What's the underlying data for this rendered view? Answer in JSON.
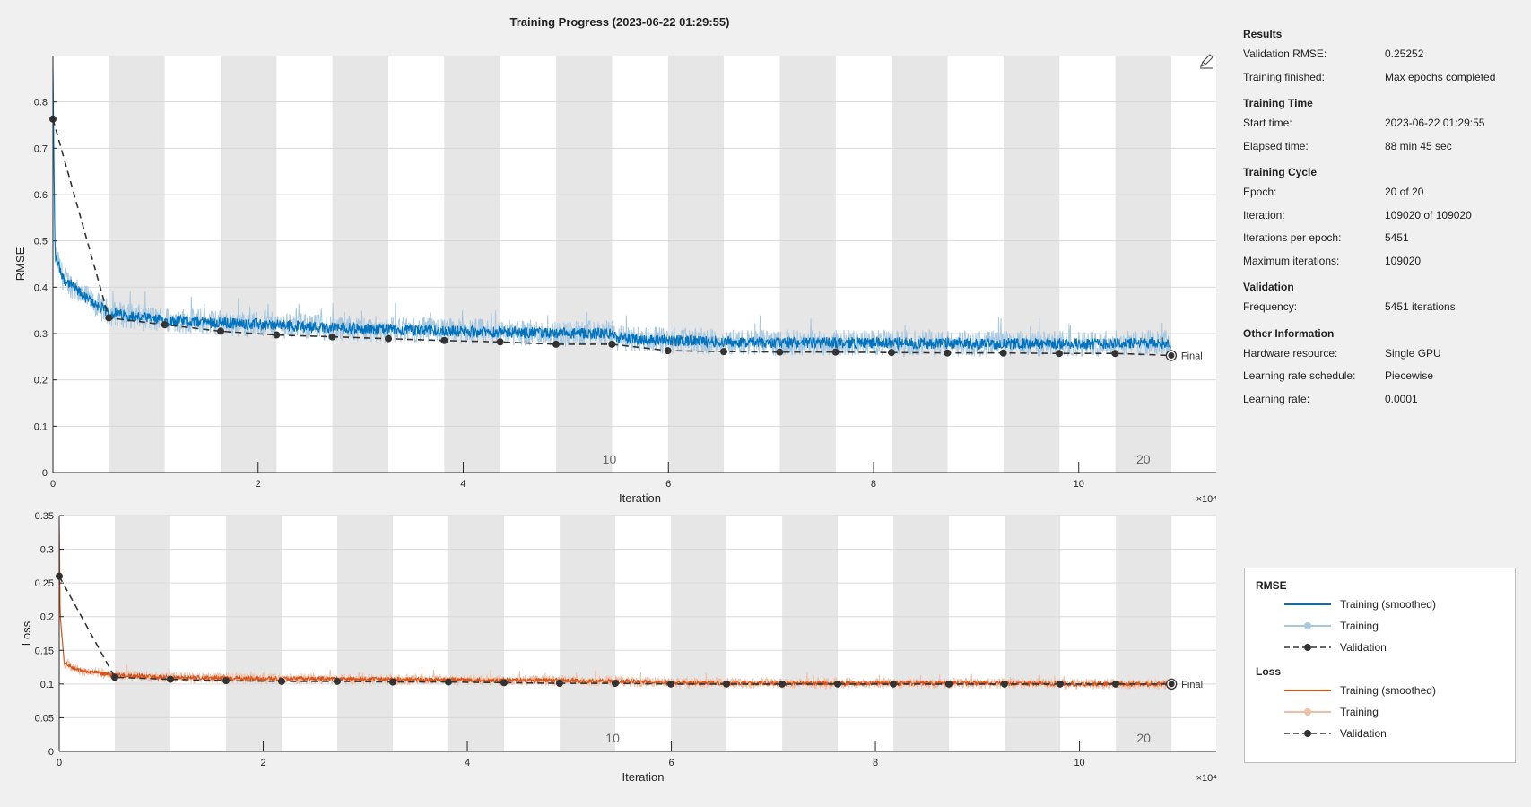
{
  "title": "Training Progress (2023-06-22 01:29:55)",
  "colors": {
    "rmse_train": "#0072bd",
    "rmse_train_raw": "#a6c8e0",
    "loss_train": "#d95319",
    "loss_train_raw": "#f0bfa6",
    "validation": "#333333",
    "epoch_band": "#e6e6e6"
  },
  "edit_icon": "pencil-icon",
  "final_label": "Final",
  "epoch_markers": [
    "10",
    "20"
  ],
  "chart_data": [
    {
      "type": "line",
      "title": "",
      "xlabel": "Iteration",
      "ylabel": "RMSE",
      "x_exponent": "×10⁴",
      "xlim": [
        0,
        11.34
      ],
      "ylim": [
        0,
        0.9
      ],
      "xticks": [
        "0",
        "2",
        "4",
        "6",
        "8",
        "10"
      ],
      "xtick_values": [
        0,
        2,
        4,
        6,
        8,
        10
      ],
      "yticks": [
        "0",
        "0.1",
        "0.2",
        "0.3",
        "0.4",
        "0.5",
        "0.6",
        "0.7",
        "0.8"
      ],
      "ytick_values": [
        0,
        0.1,
        0.2,
        0.3,
        0.4,
        0.5,
        0.6,
        0.7,
        0.8
      ],
      "series": [
        {
          "name": "Training (smoothed)",
          "x": [
            0,
            0.02,
            0.1,
            0.3,
            0.545,
            1,
            2,
            3,
            4,
            5,
            5.45,
            5.5,
            6,
            7,
            8,
            9,
            10,
            10.9
          ],
          "values": [
            0.87,
            0.47,
            0.42,
            0.38,
            0.345,
            0.33,
            0.32,
            0.31,
            0.305,
            0.3,
            0.3,
            0.29,
            0.285,
            0.28,
            0.28,
            0.278,
            0.278,
            0.28
          ]
        },
        {
          "name": "Validation",
          "x": [
            0,
            0.545,
            1.09,
            1.635,
            2.18,
            2.725,
            3.27,
            3.815,
            4.36,
            4.905,
            5.45,
            5.995,
            6.54,
            7.085,
            7.63,
            8.175,
            8.72,
            9.265,
            9.81,
            10.355,
            10.902
          ],
          "values": [
            0.763,
            0.334,
            0.319,
            0.305,
            0.297,
            0.293,
            0.289,
            0.285,
            0.282,
            0.277,
            0.277,
            0.263,
            0.261,
            0.26,
            0.26,
            0.259,
            0.258,
            0.258,
            0.257,
            0.257,
            0.25252
          ]
        }
      ]
    },
    {
      "type": "line",
      "title": "",
      "xlabel": "Iteration",
      "ylabel": "Loss",
      "x_exponent": "×10⁴",
      "xlim": [
        0,
        11.34
      ],
      "ylim": [
        0,
        0.35
      ],
      "xticks": [
        "0",
        "2",
        "4",
        "6",
        "8",
        "10"
      ],
      "xtick_values": [
        0,
        2,
        4,
        6,
        8,
        10
      ],
      "yticks": [
        "0",
        "0.05",
        "0.1",
        "0.15",
        "0.2",
        "0.25",
        "0.3",
        "0.35"
      ],
      "ytick_values": [
        0,
        0.05,
        0.1,
        0.15,
        0.2,
        0.25,
        0.3,
        0.35
      ],
      "series": [
        {
          "name": "Training (smoothed)",
          "x": [
            0,
            0.01,
            0.05,
            0.2,
            0.545,
            1,
            2,
            3,
            4,
            5,
            5.45,
            6,
            7,
            8,
            9,
            10,
            10.9
          ],
          "values": [
            0.34,
            0.2,
            0.13,
            0.12,
            0.113,
            0.11,
            0.108,
            0.107,
            0.106,
            0.105,
            0.104,
            0.102,
            0.101,
            0.101,
            0.101,
            0.1,
            0.1
          ]
        },
        {
          "name": "Validation",
          "x": [
            0,
            0.545,
            1.09,
            1.635,
            2.18,
            2.725,
            3.27,
            3.815,
            4.36,
            4.905,
            5.45,
            5.995,
            6.54,
            7.085,
            7.63,
            8.175,
            8.72,
            9.265,
            9.81,
            10.355,
            10.902
          ],
          "values": [
            0.26,
            0.11,
            0.107,
            0.105,
            0.104,
            0.104,
            0.103,
            0.103,
            0.102,
            0.101,
            0.101,
            0.1,
            0.1,
            0.1,
            0.1,
            0.1,
            0.1,
            0.1,
            0.1,
            0.1,
            0.1
          ]
        }
      ]
    }
  ],
  "info": {
    "sections": [
      {
        "title": "Results",
        "rows": [
          {
            "key": "Validation RMSE:",
            "value": "0.25252"
          },
          {
            "key": "Training finished:",
            "value": "Max epochs completed"
          }
        ]
      },
      {
        "title": "Training Time",
        "rows": [
          {
            "key": "Start time:",
            "value": "2023-06-22 01:29:55"
          },
          {
            "key": "Elapsed time:",
            "value": "88 min 45 sec"
          }
        ]
      },
      {
        "title": "Training Cycle",
        "rows": [
          {
            "key": "Epoch:",
            "value": "20 of 20"
          },
          {
            "key": "Iteration:",
            "value": "109020 of 109020"
          },
          {
            "key": "Iterations per epoch:",
            "value": "5451"
          },
          {
            "key": "Maximum iterations:",
            "value": "109020"
          }
        ]
      },
      {
        "title": "Validation",
        "rows": [
          {
            "key": "Frequency:",
            "value": "5451 iterations"
          }
        ]
      },
      {
        "title": "Other Information",
        "rows": [
          {
            "key": "Hardware resource:",
            "value": "Single GPU"
          },
          {
            "key": "Learning rate schedule:",
            "value": "Piecewise"
          },
          {
            "key": "Learning rate:",
            "value": "0.0001"
          }
        ]
      }
    ]
  },
  "legend": {
    "groups": [
      {
        "title": "RMSE",
        "items": [
          {
            "label": "Training (smoothed)",
            "kind": "smoothed",
            "color": "#0072bd"
          },
          {
            "label": "Training",
            "kind": "raw",
            "color": "#a6c8e0"
          },
          {
            "label": "Validation",
            "kind": "validation",
            "color": "#333333"
          }
        ]
      },
      {
        "title": "Loss",
        "items": [
          {
            "label": "Training (smoothed)",
            "kind": "smoothed",
            "color": "#d95319"
          },
          {
            "label": "Training",
            "kind": "raw",
            "color": "#f0bfa6"
          },
          {
            "label": "Validation",
            "kind": "validation",
            "color": "#333333"
          }
        ]
      }
    ]
  }
}
